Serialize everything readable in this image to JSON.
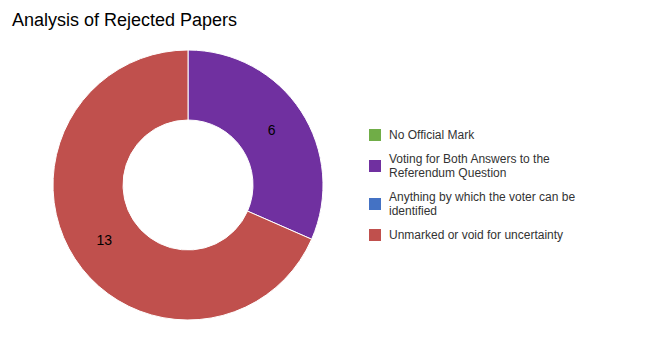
{
  "chart_data": {
    "type": "pie",
    "title": "Analysis of Rejected Papers",
    "categories": [
      "No Official Mark",
      "Voting for Both Answers to the\nReferendum Question",
      "Anything by which the voter can be\nidentified",
      "Unmarked or void for uncertainty"
    ],
    "values": [
      0,
      6,
      0,
      13
    ],
    "colors": [
      "#70ad47",
      "#7030a0",
      "#4472c4",
      "#c0504d"
    ],
    "data_labels": true,
    "legend": "right"
  }
}
